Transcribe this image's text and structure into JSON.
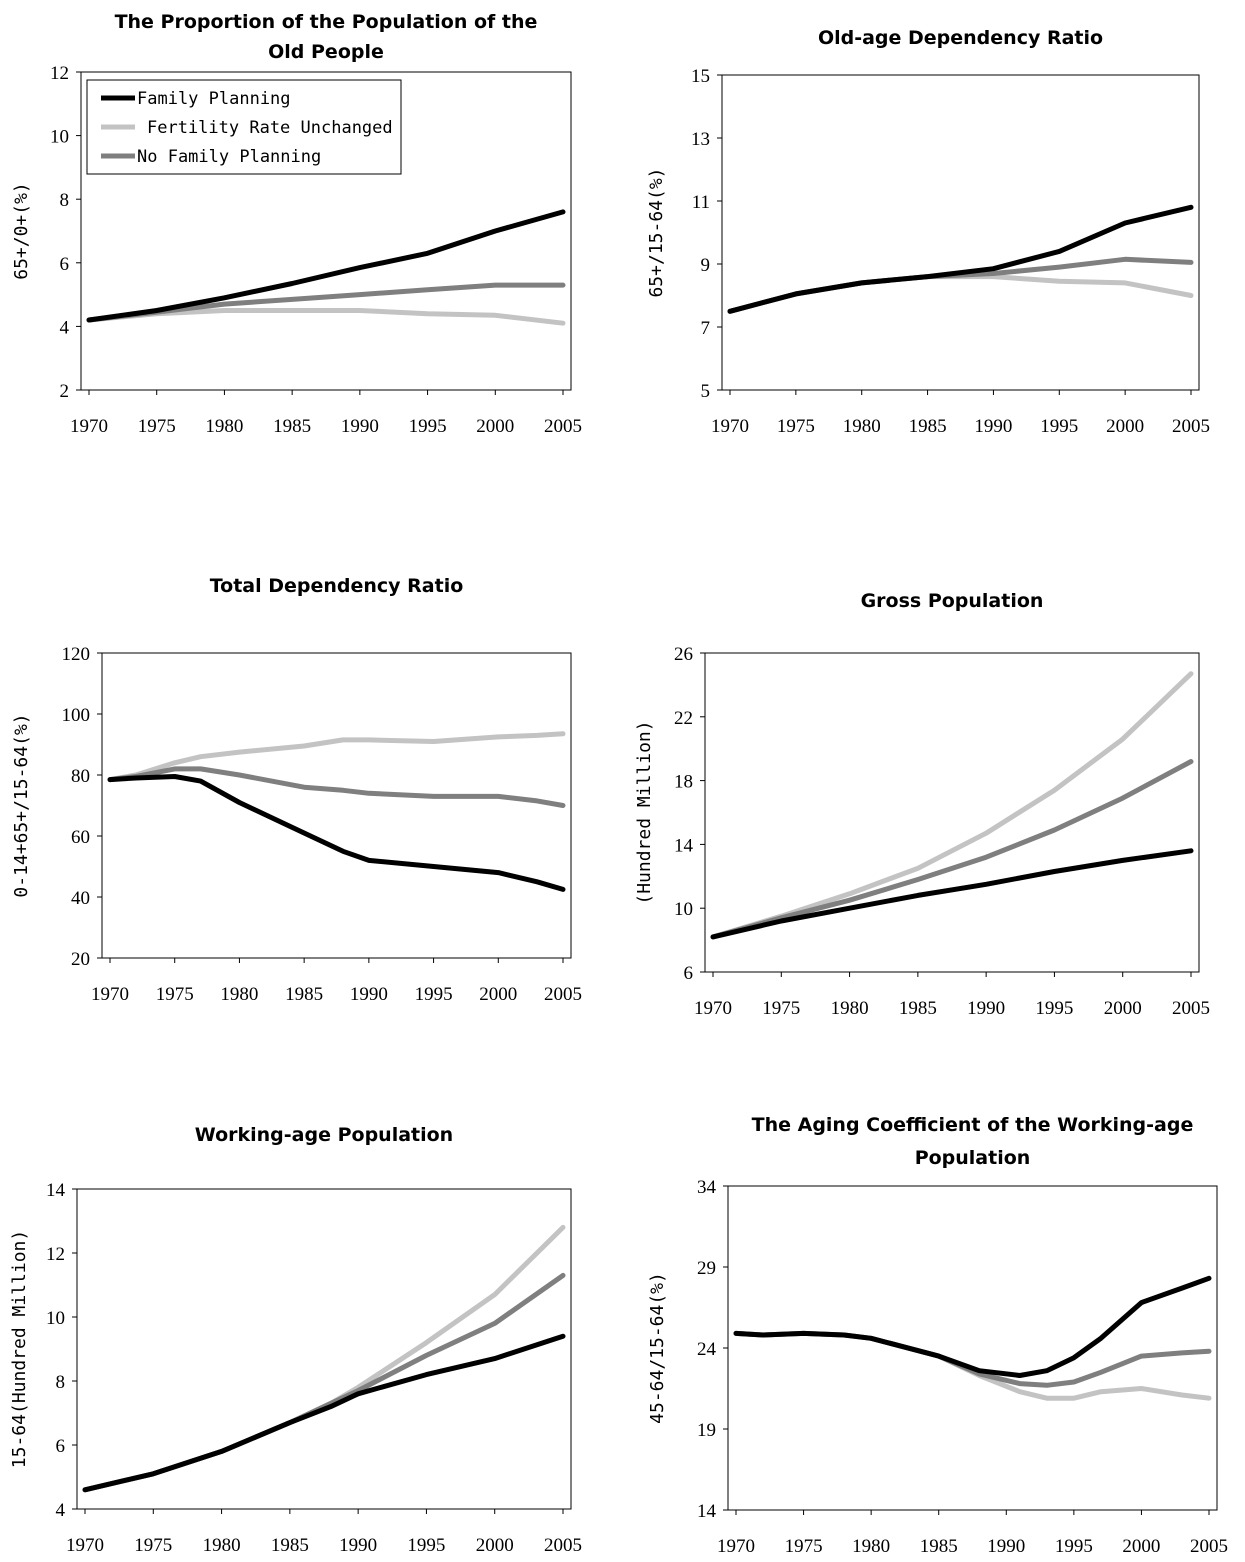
{
  "colors": {
    "family_planning": "#000000",
    "fertility_rate_unchanged": "#c3c3c3",
    "no_family_planning": "#7f7f7f"
  },
  "chart_data": [
    {
      "type": "line",
      "title": "The Proportion of the Population of the Old People",
      "title_lines": [
        "The Proportion of the Population of the",
        "Old People"
      ],
      "ylabel": "65+/0+(%)",
      "xlabel": "",
      "xlim": [
        1970,
        2005
      ],
      "xticks": [
        1970,
        1975,
        1980,
        1985,
        1990,
        1995,
        2000,
        2005
      ],
      "ylim": [
        2,
        12
      ],
      "yticks": [
        2,
        4,
        6,
        8,
        10,
        12
      ],
      "legend": {
        "placement": "top-left",
        "entries": [
          "Family Planning",
          "Fertility Rate Unchanged",
          "No Family Planning"
        ]
      },
      "x": [
        1970,
        1975,
        1980,
        1985,
        1990,
        1995,
        2000,
        2005
      ],
      "series": [
        {
          "name": "Family Planning",
          "values": [
            4.2,
            4.5,
            4.9,
            5.35,
            5.85,
            6.3,
            7.0,
            7.6
          ]
        },
        {
          "name": "Fertility Rate Unchanged",
          "values": [
            4.2,
            4.4,
            4.5,
            4.5,
            4.5,
            4.4,
            4.35,
            4.1
          ]
        },
        {
          "name": "No Family Planning",
          "values": [
            4.2,
            4.45,
            4.7,
            4.85,
            5.0,
            5.15,
            5.3,
            5.3
          ]
        }
      ]
    },
    {
      "type": "line",
      "title": "Old-age Dependency Ratio",
      "title_lines": [
        "Old-age Dependency Ratio"
      ],
      "ylabel": "65+/15-64(%)",
      "xlabel": "",
      "xlim": [
        1970,
        2005
      ],
      "xticks": [
        1970,
        1975,
        1980,
        1985,
        1990,
        1995,
        2000,
        2005
      ],
      "ylim": [
        5,
        15
      ],
      "yticks": [
        5,
        7,
        9,
        11,
        13,
        15
      ],
      "x": [
        1970,
        1975,
        1980,
        1985,
        1990,
        1995,
        2000,
        2005
      ],
      "series": [
        {
          "name": "Family Planning",
          "values": [
            7.5,
            8.05,
            8.4,
            8.6,
            8.85,
            9.4,
            10.3,
            10.8
          ]
        },
        {
          "name": "Fertility Rate Unchanged",
          "values": [
            7.5,
            8.05,
            8.4,
            8.6,
            8.6,
            8.45,
            8.4,
            8.0
          ]
        },
        {
          "name": "No Family Planning",
          "values": [
            7.5,
            8.05,
            8.4,
            8.6,
            8.7,
            8.9,
            9.15,
            9.05
          ]
        }
      ]
    },
    {
      "type": "line",
      "title": "Total Dependency Ratio",
      "title_lines": [
        "Total Dependency Ratio"
      ],
      "ylabel": "0-14+65+/15-64(%)",
      "xlabel": "",
      "xlim": [
        1970,
        2005
      ],
      "xticks": [
        1970,
        1975,
        1980,
        1985,
        1990,
        1995,
        2000,
        2005
      ],
      "ylim": [
        20,
        120
      ],
      "yticks": [
        20,
        40,
        60,
        80,
        100,
        120
      ],
      "x": [
        1970,
        1972,
        1975,
        1977,
        1980,
        1985,
        1988,
        1990,
        1995,
        2000,
        2003,
        2005
      ],
      "series": [
        {
          "name": "Family Planning",
          "values": [
            78.5,
            79,
            79.5,
            78,
            71,
            61,
            55,
            52,
            50,
            48,
            45,
            42.5
          ]
        },
        {
          "name": "Fertility Rate Unchanged",
          "values": [
            78.5,
            80,
            84,
            86,
            87.5,
            89.5,
            91.5,
            91.5,
            91,
            92.5,
            93,
            93.5
          ]
        },
        {
          "name": "No Family Planning",
          "values": [
            78.5,
            79.5,
            82,
            82,
            80,
            76,
            75,
            74,
            73,
            73,
            71.5,
            70
          ]
        }
      ]
    },
    {
      "type": "line",
      "title": "Gross Population",
      "title_lines": [
        "Gross Population"
      ],
      "ylabel": "(Hundred Million)",
      "xlabel": "",
      "xlim": [
        1970,
        2005
      ],
      "xticks": [
        1970,
        1975,
        1980,
        1985,
        1990,
        1995,
        2000,
        2005
      ],
      "ylim": [
        6,
        26
      ],
      "yticks": [
        6,
        10,
        14,
        18,
        22,
        26
      ],
      "x": [
        1970,
        1975,
        1980,
        1985,
        1990,
        1995,
        2000,
        2005
      ],
      "series": [
        {
          "name": "Family Planning",
          "values": [
            8.2,
            9.2,
            10.0,
            10.8,
            11.5,
            12.3,
            13.0,
            13.6
          ]
        },
        {
          "name": "Fertility Rate Unchanged",
          "values": [
            8.2,
            9.5,
            10.9,
            12.5,
            14.7,
            17.4,
            20.6,
            24.7
          ]
        },
        {
          "name": "No Family Planning",
          "values": [
            8.2,
            9.4,
            10.5,
            11.8,
            13.2,
            14.9,
            16.9,
            19.2
          ]
        }
      ]
    },
    {
      "type": "line",
      "title": "Working-age Population",
      "title_lines": [
        "Working-age Population"
      ],
      "ylabel": "15-64(Hundred Million)",
      "xlabel": "",
      "xlim": [
        1970,
        2005
      ],
      "xticks": [
        1970,
        1975,
        1980,
        1985,
        1990,
        1995,
        2000,
        2005
      ],
      "ylim": [
        4,
        14
      ],
      "yticks": [
        4,
        6,
        8,
        10,
        12,
        14
      ],
      "x": [
        1970,
        1975,
        1980,
        1985,
        1988,
        1990,
        1995,
        2000,
        2005
      ],
      "series": [
        {
          "name": "Family Planning",
          "values": [
            4.6,
            5.1,
            5.8,
            6.7,
            7.2,
            7.6,
            8.2,
            8.7,
            9.4
          ]
        },
        {
          "name": "Fertility Rate Unchanged",
          "values": [
            4.6,
            5.1,
            5.8,
            6.7,
            7.3,
            7.8,
            9.2,
            10.7,
            12.8
          ]
        },
        {
          "name": "No Family Planning",
          "values": [
            4.6,
            5.1,
            5.8,
            6.7,
            7.3,
            7.7,
            8.8,
            9.8,
            11.3
          ]
        }
      ]
    },
    {
      "type": "line",
      "title": "The Aging Coefficient of the Working-age Population",
      "title_lines": [
        "The Aging Coefficient of the Working-age",
        "Population"
      ],
      "ylabel": "45-64/15-64(%)",
      "xlabel": "",
      "xlim": [
        1970,
        2005
      ],
      "xticks": [
        1970,
        1975,
        1980,
        1985,
        1990,
        1995,
        2000,
        2005
      ],
      "ylim": [
        14,
        34
      ],
      "yticks": [
        14,
        19,
        24,
        29,
        34
      ],
      "x": [
        1970,
        1972,
        1975,
        1978,
        1980,
        1985,
        1988,
        1991,
        1993,
        1995,
        1997,
        2000,
        2003,
        2005
      ],
      "series": [
        {
          "name": "Family Planning",
          "values": [
            24.9,
            24.8,
            24.9,
            24.8,
            24.6,
            23.5,
            22.6,
            22.3,
            22.6,
            23.4,
            24.6,
            26.8,
            27.7,
            28.3
          ]
        },
        {
          "name": "Fertility Rate Unchanged",
          "values": [
            24.9,
            24.8,
            24.9,
            24.8,
            24.6,
            23.5,
            22.3,
            21.3,
            20.9,
            20.9,
            21.3,
            21.5,
            21.1,
            20.9
          ]
        },
        {
          "name": "No Family Planning",
          "values": [
            24.9,
            24.8,
            24.9,
            24.8,
            24.6,
            23.5,
            22.4,
            21.8,
            21.7,
            21.9,
            22.5,
            23.5,
            23.7,
            23.8
          ]
        }
      ]
    }
  ]
}
